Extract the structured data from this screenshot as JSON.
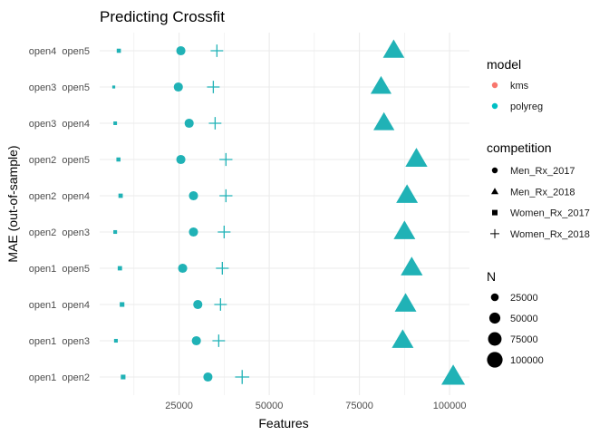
{
  "chart_data": {
    "type": "scatter",
    "title": "Predicting Crossfit",
    "xlabel": "Features",
    "ylabel": "MAE (out-of-sample)",
    "xlim": [
      3000,
      105500
    ],
    "x_ticks": [
      25000,
      50000,
      75000,
      100000
    ],
    "x_tick_labels": [
      "25000",
      "50000",
      "75000",
      "100000"
    ],
    "grid": true,
    "categories": [
      "open1  open2",
      "open1  open3",
      "open1  open4",
      "open1  open5",
      "open2  open3",
      "open2  open4",
      "open2  open5",
      "open3  open4",
      "open3  open5",
      "open4  open5"
    ],
    "series": [
      {
        "name": "Men_Rx_2017",
        "shape": "circle",
        "model": "polyreg",
        "x": [
          33000,
          29800,
          30200,
          26000,
          29000,
          29000,
          25500,
          27800,
          24800,
          25500
        ],
        "size": [
          21000,
          21000,
          21000,
          21000,
          21000,
          21000,
          21000,
          21000,
          21000,
          21000
        ]
      },
      {
        "name": "Men_Rx_2018",
        "shape": "triangle",
        "model": "polyreg",
        "x": [
          101000,
          87000,
          87800,
          89500,
          87500,
          88200,
          90800,
          81800,
          81000,
          84500
        ],
        "size": [
          100000,
          84000,
          84000,
          86000,
          84000,
          84000,
          87000,
          79000,
          78000,
          82000
        ]
      },
      {
        "name": "Women_Rx_2017",
        "shape": "square",
        "model": "polyreg",
        "x": [
          9500,
          7500,
          9200,
          8600,
          7300,
          8800,
          8200,
          7300,
          6900,
          8300
        ],
        "size": [
          7500,
          4800,
          7500,
          6500,
          4800,
          6500,
          5800,
          4500,
          3000,
          6000
        ]
      },
      {
        "name": "Women_Rx_2018",
        "shape": "plus",
        "model": "polyreg",
        "x": [
          42500,
          36000,
          36500,
          37000,
          37500,
          38000,
          38000,
          35000,
          34500,
          35500
        ],
        "size": [
          38000,
          30000,
          30000,
          31000,
          31000,
          32000,
          32000,
          30000,
          30000,
          30000
        ]
      }
    ],
    "legends": {
      "model": {
        "title": "model",
        "entries": [
          {
            "label": "kms",
            "color": "#F8766D"
          },
          {
            "label": "polyreg",
            "color": "#00BFC4"
          }
        ]
      },
      "competition": {
        "title": "competition",
        "entries": [
          {
            "label": "Men_Rx_2017",
            "shape": "circle"
          },
          {
            "label": "Men_Rx_2018",
            "shape": "triangle"
          },
          {
            "label": "Women_Rx_2017",
            "shape": "square"
          },
          {
            "label": "Women_Rx_2018",
            "shape": "plus"
          }
        ]
      },
      "size": {
        "title": "N",
        "entries": [
          {
            "label": "25000",
            "value": 25000
          },
          {
            "label": "50000",
            "value": 50000
          },
          {
            "label": "75000",
            "value": 75000
          },
          {
            "label": "100000",
            "value": 100000
          }
        ]
      }
    },
    "legend_position": "right",
    "point_color": "#20B2B6"
  }
}
